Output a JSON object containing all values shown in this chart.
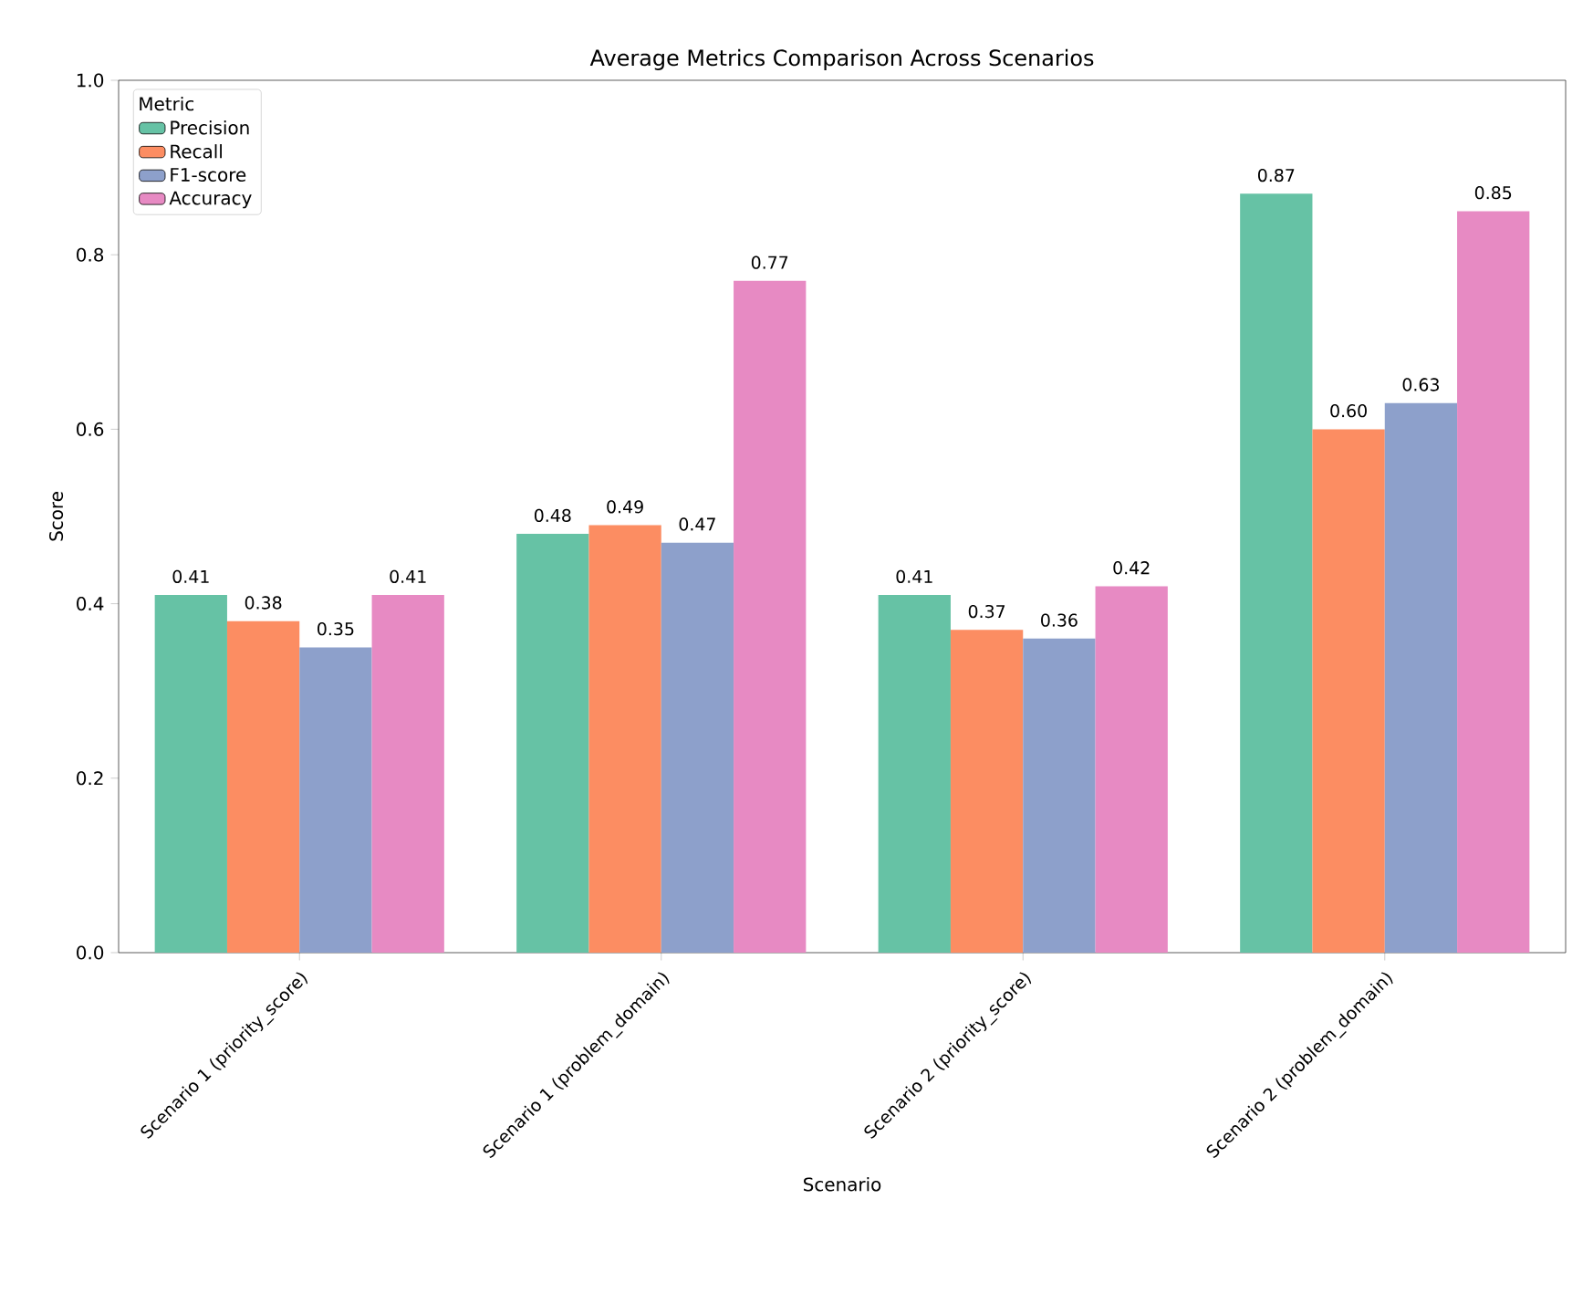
{
  "chart_data": {
    "type": "bar",
    "title": "Average Metrics Comparison Across Scenarios",
    "xlabel": "Scenario",
    "ylabel": "Score",
    "legend_title": "Metric",
    "legend": "top left",
    "categories": [
      "Scenario 1 (priority_score)",
      "Scenario 1 (problem_domain)",
      "Scenario 2 (priority_score)",
      "Scenario 2 (problem_domain)"
    ],
    "ylim": [
      0,
      1
    ],
    "yticks": [
      {
        "value": 0,
        "label": "0.0"
      },
      {
        "value": 0.2,
        "label": "0.2"
      },
      {
        "value": 0.4,
        "label": "0.4"
      },
      {
        "value": 0.6,
        "label": "0.6"
      },
      {
        "value": 0.8,
        "label": "0.8"
      },
      {
        "value": 1,
        "label": "1.0"
      }
    ],
    "series": [
      {
        "name": "Precision",
        "color": "#66c2a5",
        "values": [
          0.41,
          0.48,
          0.41,
          0.87
        ],
        "value_labels": [
          "0.41",
          "0.48",
          "0.41",
          "0.87"
        ]
      },
      {
        "name": "Recall",
        "color": "#fc8d62",
        "values": [
          0.38,
          0.49,
          0.37,
          0.6
        ],
        "value_labels": [
          "0.38",
          "0.49",
          "0.37",
          "0.60"
        ]
      },
      {
        "name": "F1-score",
        "color": "#8da0cb",
        "values": [
          0.35,
          0.47,
          0.36,
          0.63
        ],
        "value_labels": [
          "0.35",
          "0.47",
          "0.36",
          "0.63"
        ]
      },
      {
        "name": "Accuracy",
        "color": "#e78ac3",
        "values": [
          0.41,
          0.77,
          0.42,
          0.85
        ],
        "value_labels": [
          "0.41",
          "0.77",
          "0.42",
          "0.85"
        ]
      }
    ]
  }
}
